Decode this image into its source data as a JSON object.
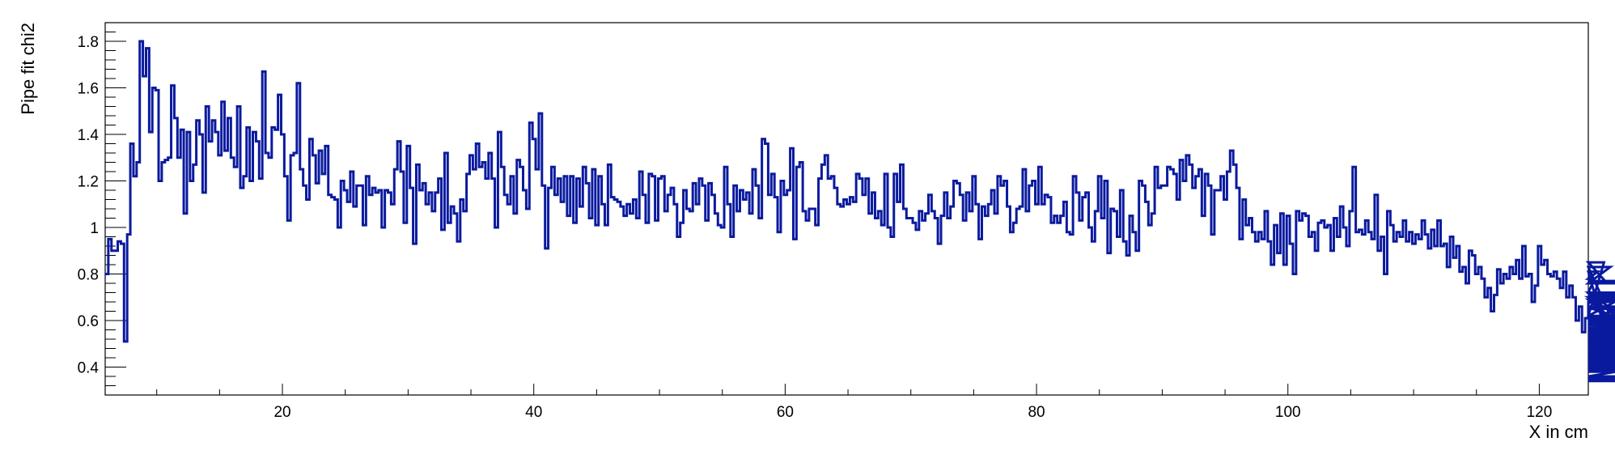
{
  "chart_data": {
    "type": "histogram",
    "xlabel": "X in cm",
    "ylabel": "Pipe fit chi2",
    "xlim": [
      5.9,
      123.9
    ],
    "ylim": [
      0.28,
      1.88
    ],
    "x_ticks": [
      20,
      40,
      60,
      80,
      100,
      120
    ],
    "x_tick_labels": [
      "20",
      "40",
      "60",
      "80",
      "100",
      "120"
    ],
    "y_ticks": [
      0.4,
      0.6,
      0.8,
      1.0,
      1.2,
      1.4,
      1.6,
      1.8
    ],
    "y_tick_labels": [
      "0.4",
      "0.6",
      "0.8",
      "1",
      "1.2",
      "1.4",
      "1.6",
      "1.8"
    ],
    "grid": false,
    "line_color": "#0a1a9e",
    "series": [
      {
        "bin_start": 5.9,
        "bin_width": 0.25,
        "values": [
          0.8,
          0.95,
          0.9,
          0.9,
          0.94,
          0.93,
          0.51,
          0.97,
          1.36,
          1.22,
          1.28,
          1.8,
          1.65,
          1.77,
          1.41,
          1.6,
          1.59,
          1.2,
          1.28,
          1.29,
          1.3,
          1.61,
          1.47,
          1.3,
          1.42,
          1.06,
          1.41,
          1.2,
          1.27,
          1.46,
          1.4,
          1.15,
          1.52,
          1.37,
          1.46,
          1.41,
          1.31,
          1.54,
          1.33,
          1.47,
          1.3,
          1.26,
          1.52,
          1.17,
          1.22,
          1.43,
          1.2,
          1.41,
          1.37,
          1.21,
          1.67,
          1.32,
          1.3,
          1.43,
          1.42,
          1.57,
          1.4,
          1.22,
          1.03,
          1.31,
          1.32,
          1.62,
          1.25,
          1.18,
          1.12,
          1.38,
          1.31,
          1.19,
          1.33,
          1.23,
          1.35,
          1.14,
          1.13,
          1.12,
          1.0,
          1.2,
          1.16,
          1.11,
          1.24,
          1.09,
          1.18,
          1.18,
          1.01,
          1.22,
          1.14,
          1.17,
          1.15,
          1.16,
          1.0,
          1.16,
          1.15,
          1.1,
          1.25,
          1.37,
          1.24,
          1.02,
          1.35,
          1.17,
          0.93,
          1.27,
          1.16,
          1.19,
          1.1,
          1.15,
          1.07,
          1.15,
          1.21,
          0.99,
          1.32,
          1.02,
          1.09,
          1.06,
          0.94,
          1.12,
          1.07,
          1.23,
          1.31,
          1.25,
          1.36,
          1.26,
          1.28,
          1.21,
          1.32,
          1.21,
          1.0,
          1.41,
          1.26,
          1.14,
          1.1,
          1.22,
          1.06,
          1.29,
          1.26,
          1.16,
          1.08,
          1.45,
          1.38,
          1.25,
          1.49,
          1.18,
          0.91,
          1.17,
          1.26,
          1.14,
          1.21,
          1.11,
          1.22,
          1.05,
          1.22,
          1.02,
          1.21,
          1.09,
          1.26,
          1.19,
          1.04,
          1.25,
          1.01,
          1.22,
          1.1,
          1.01,
          1.27,
          1.13,
          1.12,
          1.11,
          1.09,
          1.05,
          1.1,
          1.06,
          1.12,
          1.04,
          1.24,
          1.14,
          1.02,
          1.23,
          1.22,
          1.03,
          1.21,
          1.22,
          1.07,
          1.14,
          1.17,
          1.1,
          0.96,
          1.02,
          1.16,
          1.08,
          1.07,
          1.19,
          1.1,
          1.21,
          1.18,
          1.03,
          1.19,
          1.14,
          1.06,
          1.01,
          1.0,
          1.26,
          1.1,
          0.96,
          1.18,
          1.07,
          1.16,
          1.12,
          1.15,
          1.06,
          1.25,
          1.18,
          1.04,
          1.38,
          1.36,
          1.14,
          1.23,
          1.13,
          0.98,
          1.2,
          1.14,
          1.16,
          1.34,
          0.95,
          1.26,
          1.28,
          1.07,
          1.03,
          1.08,
          1.08,
          1.01,
          1.21,
          1.27,
          1.31,
          1.21,
          1.22,
          1.17,
          1.1,
          1.09,
          1.12,
          1.1,
          1.13,
          1.11,
          1.23,
          1.21,
          1.14,
          1.21,
          1.06,
          1.15,
          1.04,
          1.07,
          1.01,
          1.23,
          1.0,
          0.96,
          1.23,
          1.11,
          1.27,
          1.08,
          1.04,
          1.04,
          1.02,
          0.99,
          1.07,
          1.03,
          1.06,
          1.14,
          1.07,
          1.04,
          0.93,
          1.05,
          1.15,
          1.04,
          1.09,
          1.2,
          1.19,
          1.14,
          1.03,
          1.15,
          1.07,
          1.22,
          1.1,
          0.95,
          1.09,
          1.05,
          1.1,
          1.16,
          1.06,
          1.22,
          1.18,
          1.2,
          1.09,
          0.98,
          1.02,
          1.08,
          1.09,
          1.25,
          1.07,
          1.18,
          1.2,
          1.1,
          1.26,
          1.1,
          1.14,
          1.13,
          1.02,
          1.05,
          1.02,
          1.05,
          1.11,
          0.98,
          0.97,
          1.22,
          1.15,
          1.03,
          1.13,
          1.15,
          1.0,
          0.94,
          1.07,
          1.22,
          1.04,
          1.2,
          0.89,
          1.08,
          1.07,
          0.96,
          1.16,
          0.94,
          0.88,
          1.05,
          0.98,
          0.9,
          1.2,
          1.18,
          1.11,
          1.01,
          1.06,
          1.26,
          1.17,
          1.18,
          1.18,
          1.26,
          1.25,
          1.23,
          1.12,
          1.29,
          1.2,
          1.31,
          1.27,
          1.17,
          1.22,
          1.25,
          1.05,
          1.23,
          1.18,
          0.97,
          1.16,
          1.16,
          1.22,
          1.12,
          1.24,
          1.33,
          1.27,
          1.17,
          0.95,
          1.12,
          1.01,
          1.04,
          0.98,
          0.94,
          0.98,
          0.95,
          1.07,
          0.94,
          0.84,
          1.01,
          0.89,
          1.06,
          0.84,
          1.05,
          0.93,
          0.8,
          1.07,
          1.03,
          1.06,
          1.05,
          0.96,
          0.98,
          0.9,
          1.02,
          1.03,
          1.0,
          1.01,
          0.9,
          1.04,
          0.96,
          1.09,
          1.0,
          0.92,
          1.07,
          1.26,
          0.98,
          0.99,
          0.97,
          1.03,
          0.98,
          0.95,
          1.14,
          0.9,
          0.96,
          0.8,
          1.07,
          1.01,
          0.94,
          0.98,
          0.96,
          1.03,
          0.94,
          0.98,
          0.93,
          0.97,
          0.95,
          1.03,
          0.97,
          0.91,
          0.99,
          0.92,
          1.03,
          0.92,
          0.93,
          0.83,
          0.96,
          0.87,
          0.92,
          0.81,
          0.83,
          0.76,
          0.9,
          0.88,
          0.8,
          0.83,
          0.78,
          0.7,
          0.74,
          0.64,
          0.71,
          0.82,
          0.76,
          0.8,
          0.78,
          0.83,
          0.8,
          0.86,
          0.78,
          0.92,
          0.79,
          0.8,
          0.68,
          0.75,
          0.92,
          0.84,
          0.86,
          0.8,
          0.79,
          0.81,
          0.78,
          0.74,
          0.81,
          0.7,
          0.75,
          0.7,
          0.6,
          0.66,
          0.55,
          0.61,
          0.68,
          0.72,
          0.78,
          0.81,
          0.62,
          0.85,
          0.76,
          0.83,
          0.59,
          0.65,
          0.71,
          0.69,
          0.56,
          0.62,
          0.72,
          0.58,
          0.68,
          0.6,
          0.7,
          0.54,
          0.56,
          0.66,
          0.52,
          0.53,
          0.58,
          0.59,
          0.61,
          0.61,
          0.4,
          0.51,
          0.51,
          0.44,
          0.38,
          0.5,
          0.49,
          0.44,
          0.48,
          0.39,
          0.44,
          0.43,
          0.46,
          0.42,
          0.48,
          0.36,
          0.46,
          0.5,
          0.38,
          0.46,
          0.53,
          0.42,
          0.51,
          0.53,
          0.44,
          0.48,
          0.51,
          0.5,
          0.46,
          0.45,
          0.42,
          0.35,
          0.41,
          0.47,
          0.6,
          0.52,
          0.55,
          0.34,
          0.46,
          0.38,
          0.49,
          0.42,
          0.51,
          0.55,
          0.46,
          0.56,
          0.5,
          0.52,
          0.58,
          0.57,
          0.41,
          0.77,
          0.76
        ]
      }
    ]
  }
}
